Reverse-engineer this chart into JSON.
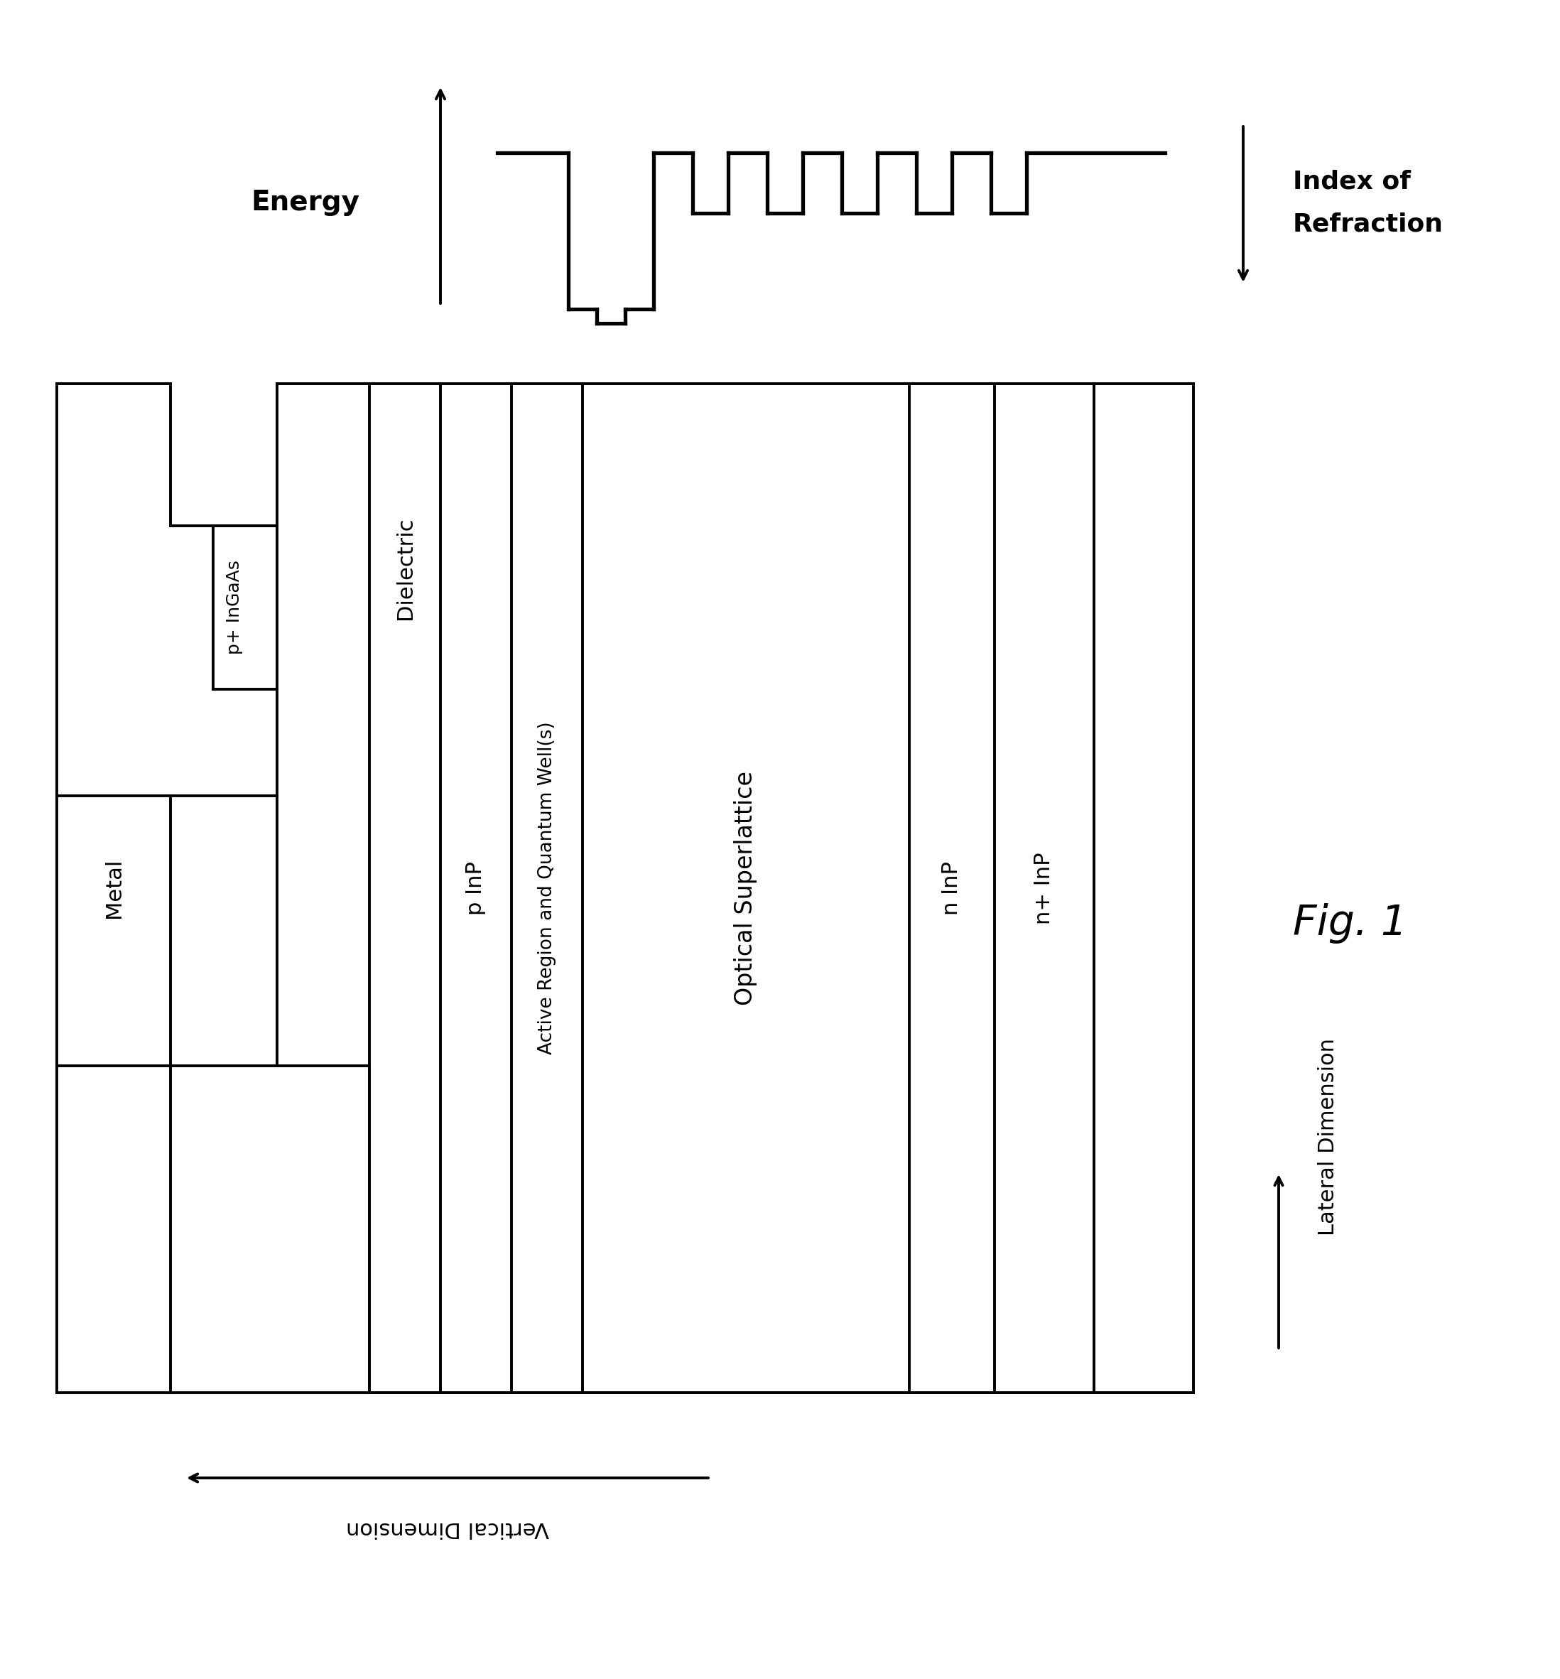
{
  "bg_color": "#ffffff",
  "lw": 2.8,
  "fig_width": 21.96,
  "fig_height": 23.63,
  "energy_label": "Energy",
  "index_label1": "Index of",
  "index_label2": "Refraction",
  "fig_label": "Fig. 1",
  "vertical_dim_label": "Vertical Dimension",
  "lateral_dim_label": "Lateral Dimension",
  "font_size_labels": 22,
  "font_size_small": 19,
  "font_size_fig": 42
}
